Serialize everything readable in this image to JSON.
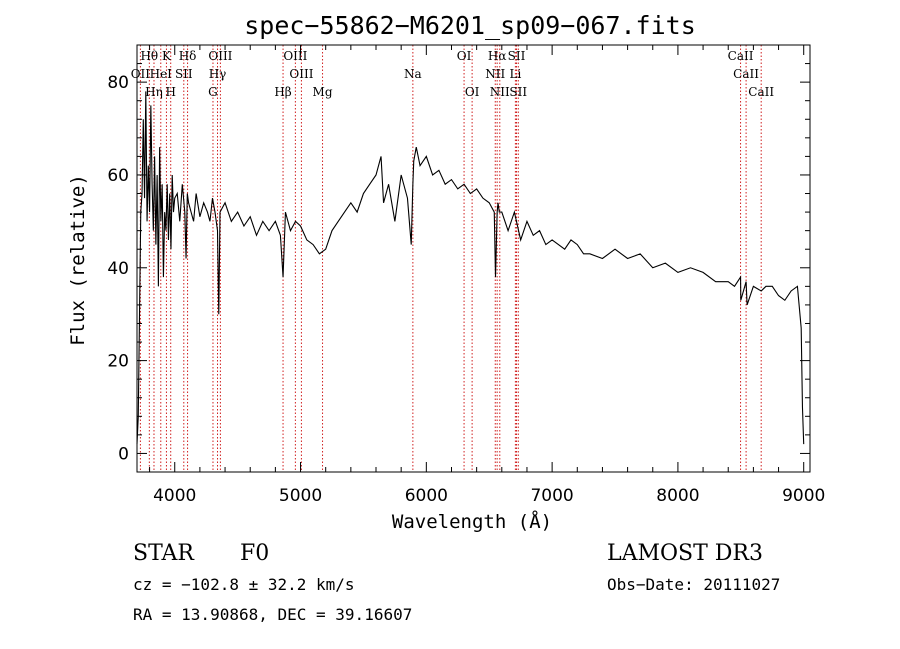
{
  "chart_data": {
    "type": "line",
    "title": "spec−55862−M6201_sp09−067.fits",
    "xlabel": "Wavelength (Å)",
    "ylabel": "Flux (relative)",
    "xlim": [
      3700,
      9050
    ],
    "ylim": [
      -4,
      88
    ],
    "xticks": [
      4000,
      5000,
      6000,
      7000,
      8000,
      9000
    ],
    "yticks": [
      0,
      20,
      40,
      60,
      80
    ],
    "series": [
      {
        "name": "spectrum",
        "x": [
          3700,
          3710,
          3720,
          3730,
          3740,
          3750,
          3760,
          3770,
          3780,
          3790,
          3800,
          3810,
          3820,
          3830,
          3840,
          3850,
          3860,
          3870,
          3880,
          3890,
          3900,
          3910,
          3920,
          3930,
          3940,
          3950,
          3960,
          3970,
          3980,
          3990,
          4000,
          4020,
          4040,
          4060,
          4080,
          4090,
          4100,
          4110,
          4130,
          4150,
          4170,
          4200,
          4230,
          4260,
          4280,
          4300,
          4320,
          4340,
          4350,
          4360,
          4400,
          4450,
          4500,
          4550,
          4600,
          4650,
          4700,
          4750,
          4800,
          4840,
          4861,
          4880,
          4920,
          4960,
          5000,
          5050,
          5100,
          5150,
          5200,
          5250,
          5300,
          5350,
          5400,
          5450,
          5500,
          5550,
          5600,
          5640,
          5660,
          5700,
          5750,
          5800,
          5850,
          5880,
          5893,
          5900,
          5920,
          5950,
          6000,
          6050,
          6100,
          6150,
          6200,
          6250,
          6300,
          6350,
          6400,
          6450,
          6500,
          6540,
          6550,
          6563,
          6570,
          6580,
          6600,
          6650,
          6700,
          6750,
          6800,
          6850,
          6900,
          6950,
          7000,
          7050,
          7100,
          7150,
          7200,
          7250,
          7300,
          7400,
          7500,
          7600,
          7700,
          7800,
          7900,
          8000,
          8100,
          8200,
          8300,
          8400,
          8450,
          8498,
          8500,
          8542,
          8550,
          8600,
          8662,
          8700,
          8750,
          8800,
          8850,
          8900,
          8950,
          8980,
          8990,
          9000
        ],
        "values": [
          2,
          8,
          30,
          52,
          56,
          72,
          55,
          78,
          50,
          62,
          52,
          75,
          58,
          48,
          64,
          45,
          60,
          36,
          66,
          50,
          58,
          38,
          52,
          48,
          58,
          46,
          56,
          44,
          60,
          52,
          55,
          56,
          50,
          58,
          52,
          42,
          56,
          54,
          52,
          50,
          56,
          51,
          54,
          52,
          50,
          55,
          52,
          48,
          30,
          52,
          54,
          50,
          52,
          49,
          51,
          47,
          50,
          48,
          50,
          47,
          38,
          52,
          48,
          50,
          49,
          46,
          45,
          43,
          44,
          48,
          50,
          52,
          54,
          52,
          56,
          58,
          60,
          64,
          54,
          58,
          50,
          60,
          55,
          45,
          58,
          63,
          66,
          62,
          64,
          60,
          61,
          58,
          59,
          57,
          58,
          56,
          57,
          55,
          54,
          52,
          38,
          52,
          54,
          52,
          52,
          48,
          52,
          46,
          50,
          47,
          48,
          45,
          46,
          45,
          44,
          46,
          45,
          43,
          43,
          42,
          44,
          42,
          43,
          40,
          41,
          39,
          40,
          39,
          37,
          37,
          36,
          38,
          33,
          37,
          32,
          36,
          35,
          36,
          36,
          34,
          33,
          35,
          36,
          27,
          10,
          2
        ]
      }
    ],
    "spectral_lines": [
      {
        "label": "Hθ",
        "wavelength": 3798,
        "row": 0
      },
      {
        "label": "K",
        "wavelength": 3934,
        "row": 0
      },
      {
        "label": "Hδ",
        "wavelength": 4102,
        "row": 0
      },
      {
        "label": "OIII",
        "wavelength": 4363,
        "row": 0
      },
      {
        "label": "OIII",
        "wavelength": 4959,
        "row": 0
      },
      {
        "label": "OI",
        "wavelength": 6300,
        "row": 0
      },
      {
        "label": "Hα",
        "wavelength": 6563,
        "row": 0
      },
      {
        "label": "SII",
        "wavelength": 6717,
        "row": 0
      },
      {
        "label": "CaII",
        "wavelength": 8498,
        "row": 0
      },
      {
        "label": "OII",
        "wavelength": 3727,
        "row": 1
      },
      {
        "label": "HeI",
        "wavelength": 3889,
        "row": 1
      },
      {
        "label": "SII",
        "wavelength": 4072,
        "row": 1
      },
      {
        "label": "Hγ",
        "wavelength": 4340,
        "row": 1
      },
      {
        "label": "OIII",
        "wavelength": 5007,
        "row": 1
      },
      {
        "label": "Na",
        "wavelength": 5893,
        "row": 1
      },
      {
        "label": "NII",
        "wavelength": 6548,
        "row": 1
      },
      {
        "label": "Li",
        "wavelength": 6708,
        "row": 1
      },
      {
        "label": "CaII",
        "wavelength": 8542,
        "row": 1
      },
      {
        "label": "Hη",
        "wavelength": 3835,
        "row": 2
      },
      {
        "label": "H",
        "wavelength": 3968,
        "row": 2
      },
      {
        "label": "G",
        "wavelength": 4304,
        "row": 2
      },
      {
        "label": "Hβ",
        "wavelength": 4861,
        "row": 2
      },
      {
        "label": "Mg",
        "wavelength": 5175,
        "row": 2
      },
      {
        "label": "OI",
        "wavelength": 6364,
        "row": 2
      },
      {
        "label": "NII",
        "wavelength": 6584,
        "row": 2
      },
      {
        "label": "SII",
        "wavelength": 6731,
        "row": 2
      },
      {
        "label": "CaII",
        "wavelength": 8662,
        "row": 2
      }
    ]
  },
  "info": {
    "class": "STAR",
    "subclass": "F0",
    "survey": "LAMOST DR3",
    "cz": "cz = −102.8 ± 32.2 km/s",
    "obsdate": "Obs−Date: 20111027",
    "radec": "RA =  13.90868, DEC =  39.16607"
  }
}
